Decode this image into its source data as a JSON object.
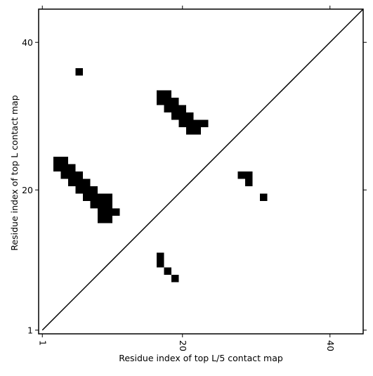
{
  "chart_data": {
    "type": "scatter",
    "xlabel": "Residue index of top L/5 contact map",
    "ylabel": "Residue index of top L contact map",
    "xlim": [
      0.5,
      44.5
    ],
    "ylim": [
      0.5,
      44.5
    ],
    "xticks": [
      1,
      20,
      40
    ],
    "yticks": [
      1,
      20,
      40
    ],
    "diagonal": true,
    "series": [
      {
        "color": "#000000",
        "x": [
          3,
          4,
          3,
          4,
          5,
          4,
          5,
          6,
          5,
          6,
          7,
          6,
          7,
          8,
          7,
          8,
          9,
          10,
          8,
          9,
          10,
          9,
          10,
          11,
          9,
          10,
          6,
          17,
          18,
          17,
          18,
          19,
          18,
          19,
          20,
          19,
          20,
          21,
          20,
          21,
          22,
          23,
          21,
          22
        ],
        "y": [
          24,
          24,
          23,
          23,
          23,
          22,
          22,
          22,
          21,
          21,
          21,
          20,
          20,
          20,
          19,
          19,
          19,
          19,
          18,
          18,
          18,
          17,
          17,
          17,
          16,
          16,
          36,
          33,
          33,
          32,
          32,
          32,
          31,
          31,
          31,
          30,
          30,
          30,
          29,
          29,
          29,
          29,
          28,
          28
        ]
      },
      {
        "color": "#000000",
        "x": [
          28,
          29,
          29,
          31,
          17,
          17,
          18,
          19
        ],
        "y": [
          22,
          22,
          21,
          19,
          11,
          10,
          9,
          8
        ]
      }
    ]
  }
}
